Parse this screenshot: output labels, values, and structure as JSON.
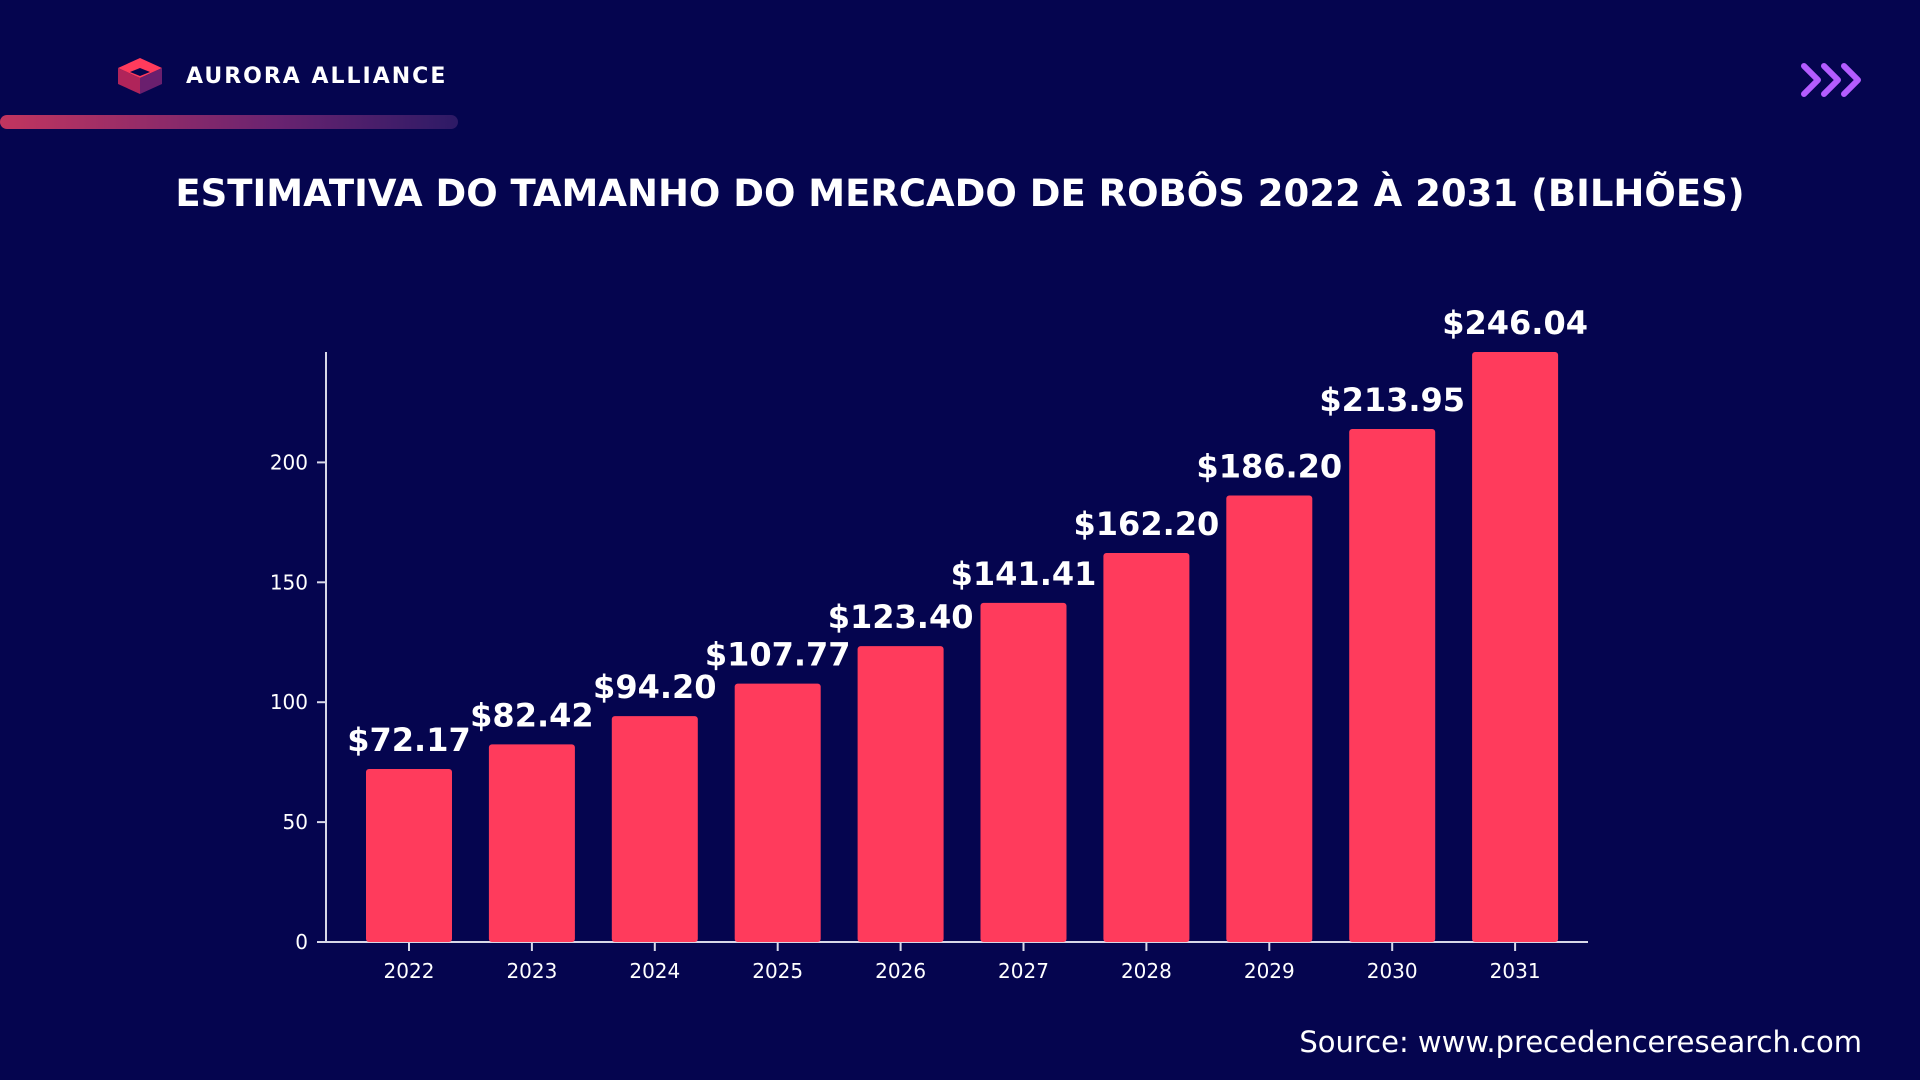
{
  "header": {
    "brand": "AURORA ALLIANCE",
    "logo_icon": "cube-logo-icon",
    "arrows_icon": "triple-chevron-right-icon"
  },
  "colors": {
    "background": "#05054f",
    "bar": "#ff3b5c",
    "arrows": "#b45cff",
    "axis": "#d8d8e8"
  },
  "chart_data": {
    "type": "bar",
    "title": "ESTIMATIVA DO TAMANHO DO MERCADO DE ROBÔS 2022 À 2031 (BILHÕES)",
    "categories": [
      "2022",
      "2023",
      "2024",
      "2025",
      "2026",
      "2027",
      "2028",
      "2029",
      "2030",
      "2031"
    ],
    "values": [
      72.17,
      82.42,
      94.2,
      107.77,
      123.4,
      141.41,
      162.2,
      186.2,
      213.95,
      246.04
    ],
    "data_labels": [
      "$72.17",
      "$82.42",
      "$94.20",
      "$107.77",
      "$123.40",
      "$141.41",
      "$162.20",
      "$186.20",
      "$213.95",
      "$246.04"
    ],
    "yticks": [
      "0",
      "50",
      "100",
      "150",
      "200"
    ],
    "ylim": [
      0,
      246.04
    ],
    "grid": false,
    "legend": "none"
  },
  "footer": {
    "source": "Source: www.precedenceresearch.com"
  }
}
